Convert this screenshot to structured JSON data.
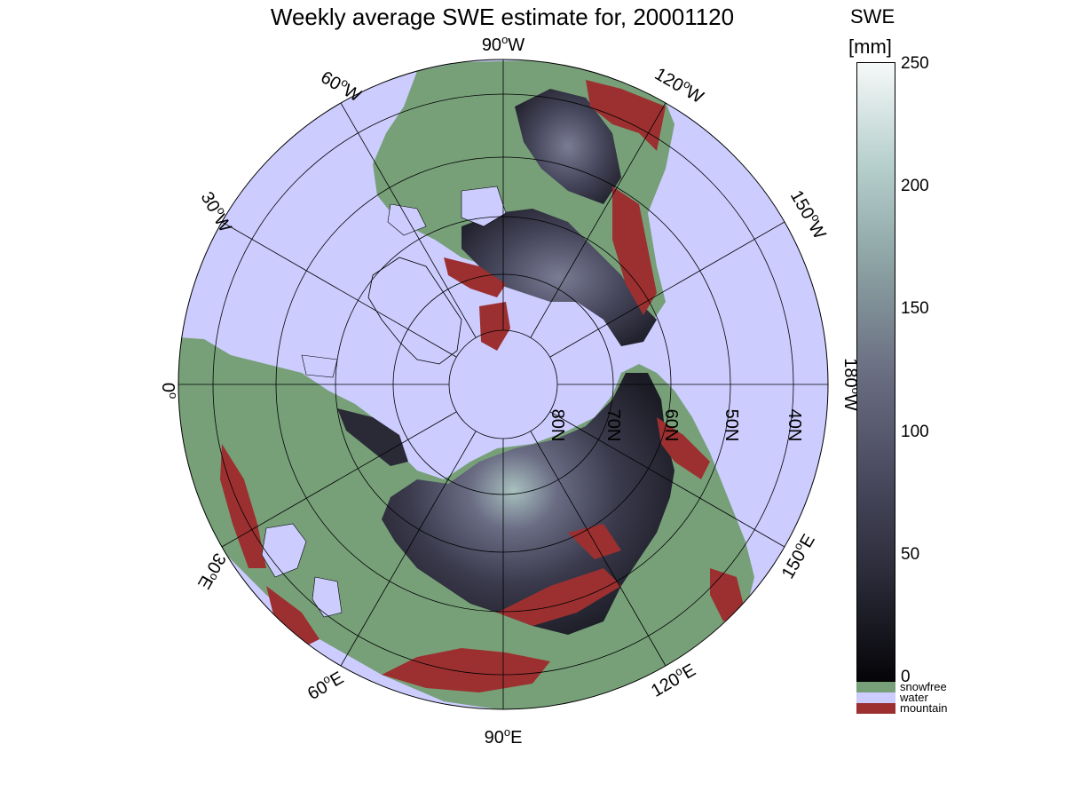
{
  "title": "Weekly average SWE estimate for, 20001120",
  "colorbar": {
    "title": "SWE",
    "unit": "[mm]",
    "ticks": [
      "250",
      "200",
      "150",
      "100",
      "50",
      "0"
    ],
    "range": [
      0,
      250
    ],
    "gradient": [
      "#050508",
      "#2a2a38",
      "#4a4a60",
      "#6a6e82",
      "#8aa0a2",
      "#b5cfcc",
      "#f5f8f8"
    ]
  },
  "legend": [
    {
      "label": "snowfree",
      "color": "#77a079"
    },
    {
      "label": "water",
      "color": "#ccccff"
    },
    {
      "label": "mountain",
      "color": "#9c3030"
    }
  ],
  "longitude_labels": {
    "w90": {
      "deg": "90",
      "hemi": "W"
    },
    "w60": {
      "deg": "60",
      "hemi": "W"
    },
    "w30": {
      "deg": "30",
      "hemi": "W"
    },
    "e0": {
      "deg": "0",
      "hemi": ""
    },
    "e30": {
      "deg": "30",
      "hemi": "E"
    },
    "e60": {
      "deg": "60",
      "hemi": "E"
    },
    "e90": {
      "deg": "90",
      "hemi": "E"
    },
    "w120": {
      "deg": "120",
      "hemi": "W"
    },
    "w150": {
      "deg": "150",
      "hemi": "W"
    },
    "w180": {
      "deg": "180",
      "hemi": "W"
    },
    "e120": {
      "deg": "120",
      "hemi": "E"
    },
    "e150": {
      "deg": "150",
      "hemi": "E"
    }
  },
  "latitude_labels": [
    "80N",
    "70N",
    "60N",
    "50N",
    "40N"
  ],
  "colors": {
    "water": "#ccccff",
    "snowfree": "#77a079",
    "mountain": "#9c3030",
    "swe_low": "#1c1c28",
    "swe_mid": "#5a5a72",
    "swe_high": "#a0b8b8"
  }
}
